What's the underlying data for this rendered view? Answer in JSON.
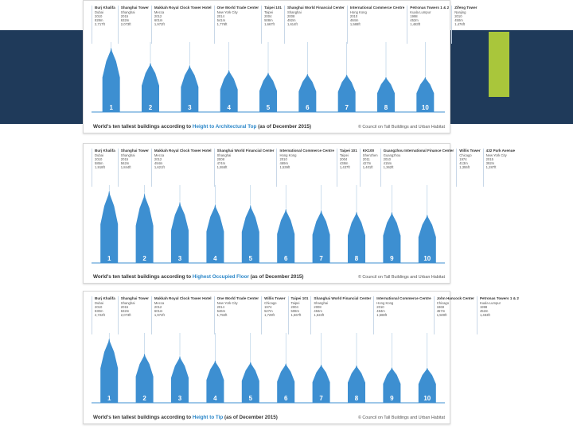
{
  "slide": {
    "band_color": "#1f3a5a",
    "accent_color": "#a9c63b"
  },
  "panels": [
    {
      "caption_prefix": "World's ten tallest buildings according to ",
      "caption_highlight": "Height to Architectural Top",
      "caption_suffix": " (as of December 2015)",
      "credit": "© Council on Tall Buildings and Urban Habitat",
      "buildings": [
        {
          "name": "Burj Khalifa",
          "details": [
            "Dubai",
            "2010",
            "828m",
            "2,717ft"
          ],
          "rank": "1"
        },
        {
          "name": "Shanghai Tower",
          "details": [
            "Shanghai",
            "2015",
            "632m",
            "2,073ft"
          ],
          "rank": "2"
        },
        {
          "name": "Makkah Royal Clock Tower Hotel",
          "details": [
            "Mecca",
            "2012",
            "601m",
            "1,972ft"
          ],
          "rank": "3"
        },
        {
          "name": "One World Trade Center",
          "details": [
            "New York City",
            "2014",
            "541m",
            "1,776ft"
          ],
          "rank": "4"
        },
        {
          "name": "Taipei 101",
          "details": [
            "Taipei",
            "2004",
            "508m",
            "1,667ft"
          ],
          "rank": "5"
        },
        {
          "name": "Shanghai World Financial Center",
          "details": [
            "Shanghai",
            "2008",
            "492m",
            "1,614ft"
          ],
          "rank": "6"
        },
        {
          "name": "International Commerce Centre",
          "details": [
            "Hong Kong",
            "2010",
            "484m",
            "1,588ft"
          ],
          "rank": "7"
        },
        {
          "name": "Petronas Towers 1 & 2",
          "details": [
            "Kuala Lumpur",
            "1998",
            "452m",
            "1,483ft"
          ],
          "rank": "8"
        },
        {
          "name": "Zifeng Tower",
          "details": [
            "Nanjing",
            "2010",
            "450m",
            "1,476ft"
          ],
          "rank": "10"
        }
      ]
    },
    {
      "caption_prefix": "World's ten tallest buildings according to ",
      "caption_highlight": "Highest Occupied Floor",
      "caption_suffix": " (as of December 2015)",
      "credit": "© Council on Tall Buildings and Urban Habitat",
      "buildings": [
        {
          "name": "Burj Khalifa",
          "details": [
            "Dubai",
            "2010",
            "585m",
            "1,918ft"
          ],
          "rank": "1"
        },
        {
          "name": "Shanghai Tower",
          "details": [
            "Shanghai",
            "2015",
            "562m",
            "1,844ft"
          ],
          "rank": "2"
        },
        {
          "name": "Makkah Royal Clock Tower Hotel",
          "details": [
            "Mecca",
            "2012",
            "494m",
            "1,621ft"
          ],
          "rank": "3"
        },
        {
          "name": "Shanghai World Financial Center",
          "details": [
            "Shanghai",
            "2008",
            "474m",
            "1,555ft"
          ],
          "rank": "4"
        },
        {
          "name": "International Commerce Centre",
          "details": [
            "Hong Kong",
            "2010",
            "469m",
            "1,539ft"
          ],
          "rank": "5"
        },
        {
          "name": "Taipei 101",
          "details": [
            "Taipei",
            "2004",
            "438m",
            "1,437ft"
          ],
          "rank": "6"
        },
        {
          "name": "KK100",
          "details": [
            "Shenzhen",
            "2011",
            "427m",
            "1,401ft"
          ],
          "rank": "7"
        },
        {
          "name": "Guangzhou International Finance Center",
          "details": [
            "Guangzhou",
            "2010",
            "415m",
            "1,362ft"
          ],
          "rank": "8"
        },
        {
          "name": "Willis Tower",
          "details": [
            "Chicago",
            "1974",
            "413m",
            "1,355ft"
          ],
          "rank": "9"
        },
        {
          "name": "432 Park Avenue",
          "details": [
            "New York City",
            "2015",
            "392m",
            "1,287ft"
          ],
          "rank": "10"
        }
      ]
    },
    {
      "caption_prefix": "World's ten tallest buildings according to ",
      "caption_highlight": "Height to Tip",
      "caption_suffix": " (as of December 2015)",
      "credit": "© Council on Tall Buildings and Urban Habitat",
      "buildings": [
        {
          "name": "Burj Khalifa",
          "details": [
            "Dubai",
            "2010",
            "830m",
            "2,722ft"
          ],
          "rank": "1"
        },
        {
          "name": "Shanghai Tower",
          "details": [
            "Shanghai",
            "2015",
            "632m",
            "2,073ft"
          ],
          "rank": "2"
        },
        {
          "name": "Makkah Royal Clock Tower Hotel",
          "details": [
            "Mecca",
            "2012",
            "601m",
            "1,972ft"
          ],
          "rank": "3"
        },
        {
          "name": "One World Trade Center",
          "details": [
            "New York City",
            "2014",
            "546m",
            "1,792ft"
          ],
          "rank": "4"
        },
        {
          "name": "Willis Tower",
          "details": [
            "Chicago",
            "1974",
            "527m",
            "1,729ft"
          ],
          "rank": "5"
        },
        {
          "name": "Taipei 101",
          "details": [
            "Taipei",
            "2004",
            "508m",
            "1,667ft"
          ],
          "rank": "6"
        },
        {
          "name": "Shanghai World Financial Center",
          "details": [
            "Shanghai",
            "2008",
            "494m",
            "1,622ft"
          ],
          "rank": "7"
        },
        {
          "name": "International Commerce Centre",
          "details": [
            "Hong Kong",
            "2010",
            "484m",
            "1,588ft"
          ],
          "rank": "8"
        },
        {
          "name": "John Hancock Center",
          "details": [
            "Chicago",
            "1969",
            "457m",
            "1,500ft"
          ],
          "rank": "9"
        },
        {
          "name": "Petronas Towers 1 & 2",
          "details": [
            "Kuala Lumpur",
            "1998",
            "452m",
            "1,483ft"
          ],
          "rank": "10"
        }
      ]
    }
  ]
}
